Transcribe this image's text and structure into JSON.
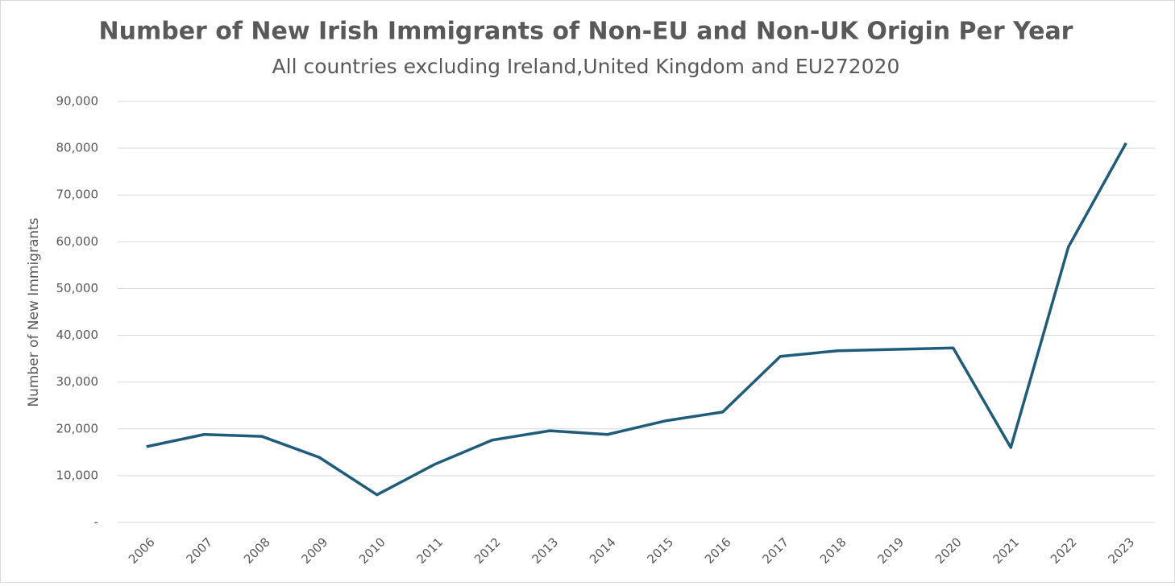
{
  "chart_data": {
    "type": "line",
    "title": "Number of New Irish Immigrants of Non-EU and Non-UK Origin Per Year",
    "subtitle": "All countries excluding Ireland,United Kingdom and EU272020",
    "y_label": "Number of New Immigrants",
    "categories": [
      "2006",
      "2007",
      "2008",
      "2009",
      "2010",
      "2011",
      "2012",
      "2013",
      "2014",
      "2015",
      "2016",
      "2017",
      "2018",
      "2019",
      "2020",
      "2021",
      "2022",
      "2023"
    ],
    "series": [
      {
        "name": "Number of New Immigrants",
        "color": "#1f5c7a",
        "values": [
          16200,
          18800,
          18400,
          13900,
          5900,
          12400,
          17600,
          19600,
          18800,
          21700,
          23600,
          35500,
          36700,
          37000,
          37300,
          16000,
          58900,
          81100
        ]
      }
    ],
    "ylim": [
      0,
      90000
    ],
    "yticks": [
      {
        "value": 0,
        "label": "-"
      },
      {
        "value": 10000,
        "label": "10,000"
      },
      {
        "value": 20000,
        "label": "20,000"
      },
      {
        "value": 30000,
        "label": "30,000"
      },
      {
        "value": 40000,
        "label": "40,000"
      },
      {
        "value": 50000,
        "label": "50,000"
      },
      {
        "value": 60000,
        "label": "60,000"
      },
      {
        "value": 70000,
        "label": "70,000"
      },
      {
        "value": 80000,
        "label": "80,000"
      },
      {
        "value": 90000,
        "label": "90,000"
      }
    ],
    "grid": true
  }
}
